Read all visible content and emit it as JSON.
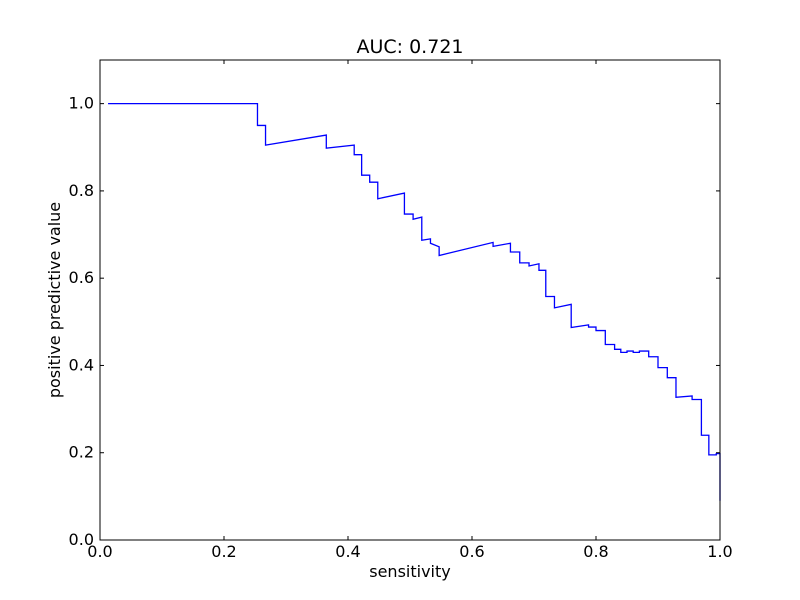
{
  "chart_data": {
    "type": "line",
    "title": "AUC: 0.721",
    "xlabel": "sensitivity",
    "ylabel": "positive predictive value",
    "xlim": [
      0.0,
      1.0
    ],
    "ylim": [
      0.0,
      1.1
    ],
    "xticks": [
      0.0,
      0.2,
      0.4,
      0.6,
      0.8,
      1.0
    ],
    "yticks": [
      0.0,
      0.2,
      0.4,
      0.6,
      0.8,
      1.0
    ],
    "xtick_labels": [
      "0.0",
      "0.2",
      "0.4",
      "0.6",
      "0.8",
      "1.0"
    ],
    "ytick_labels": [
      "0.0",
      "0.2",
      "0.4",
      "0.6",
      "0.8",
      "1.0"
    ],
    "grid": false,
    "legend": "none",
    "series": [
      {
        "color": "#0000ff",
        "x": [
          0.013,
          0.254,
          0.254,
          0.267,
          0.267,
          0.365,
          0.365,
          0.41,
          0.41,
          0.422,
          0.422,
          0.435,
          0.435,
          0.448,
          0.448,
          0.491,
          0.491,
          0.505,
          0.505,
          0.519,
          0.519,
          0.533,
          0.533,
          0.547,
          0.547,
          0.634,
          0.634,
          0.662,
          0.662,
          0.677,
          0.677,
          0.692,
          0.692,
          0.708,
          0.708,
          0.719,
          0.719,
          0.733,
          0.733,
          0.76,
          0.76,
          0.788,
          0.788,
          0.8,
          0.8,
          0.815,
          0.815,
          0.83,
          0.83,
          0.84,
          0.84,
          0.85,
          0.85,
          0.86,
          0.86,
          0.87,
          0.87,
          0.885,
          0.885,
          0.9,
          0.9,
          0.915,
          0.915,
          0.929,
          0.929,
          0.955,
          0.955,
          0.97,
          0.97,
          0.982,
          0.982,
          0.994,
          0.994,
          1.0,
          1.0
        ],
        "y": [
          1.0,
          1.0,
          0.95,
          0.95,
          0.905,
          0.928,
          0.898,
          0.905,
          0.883,
          0.883,
          0.836,
          0.836,
          0.82,
          0.82,
          0.782,
          0.795,
          0.747,
          0.747,
          0.735,
          0.74,
          0.687,
          0.69,
          0.68,
          0.672,
          0.652,
          0.682,
          0.673,
          0.68,
          0.66,
          0.66,
          0.635,
          0.635,
          0.628,
          0.633,
          0.618,
          0.618,
          0.558,
          0.558,
          0.532,
          0.54,
          0.487,
          0.493,
          0.488,
          0.488,
          0.48,
          0.48,
          0.448,
          0.448,
          0.437,
          0.437,
          0.43,
          0.43,
          0.433,
          0.433,
          0.43,
          0.43,
          0.433,
          0.433,
          0.42,
          0.42,
          0.395,
          0.395,
          0.372,
          0.372,
          0.327,
          0.33,
          0.322,
          0.322,
          0.24,
          0.24,
          0.195,
          0.195,
          0.198,
          0.198,
          0.09
        ]
      }
    ]
  }
}
